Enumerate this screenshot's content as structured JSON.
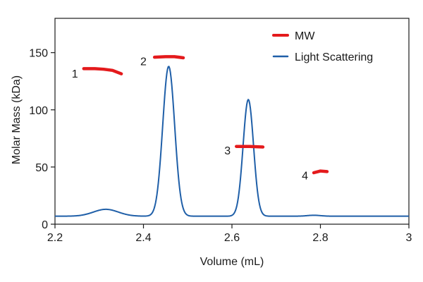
{
  "chart_data": {
    "type": "line",
    "title": "",
    "xlabel": "Volume (mL)",
    "ylabel": "Molar Mass (kDa)",
    "xlim": [
      2.2,
      3.0
    ],
    "ylim": [
      0,
      180
    ],
    "x_ticks": [
      {
        "value": 2.2,
        "label": "2.2"
      },
      {
        "value": 2.4,
        "label": "2.4"
      },
      {
        "value": 2.6,
        "label": "2.6"
      },
      {
        "value": 2.8,
        "label": "2.8"
      },
      {
        "value": 3.0,
        "label": "3"
      }
    ],
    "y_ticks": [
      {
        "value": 0,
        "label": "0"
      },
      {
        "value": 50,
        "label": "50"
      },
      {
        "value": 100,
        "label": "100"
      },
      {
        "value": 150,
        "label": "150"
      }
    ],
    "legend_position": "top-right",
    "series": [
      {
        "name": "MW",
        "color": "#e41a1c",
        "segments": [
          {
            "label": "1",
            "x": [
              2.265,
              2.29,
              2.31,
              2.33,
              2.35
            ],
            "y": [
              136,
              136,
              135.5,
              134.5,
              131.5
            ]
          },
          {
            "label": "2",
            "x": [
              2.425,
              2.45,
              2.47,
              2.49
            ],
            "y": [
              146,
              146.5,
              146.5,
              145.5
            ]
          },
          {
            "label": "3",
            "x": [
              2.61,
              2.64,
              2.67
            ],
            "y": [
              68,
              68,
              67.5
            ]
          },
          {
            "label": "4",
            "x": [
              2.785,
              2.8,
              2.815
            ],
            "y": [
              45,
              46.5,
              46
            ]
          }
        ]
      },
      {
        "name": "Light Scattering",
        "color": "#1f5fa8",
        "baseline": 7,
        "peaks": [
          {
            "center": 2.315,
            "height": 6,
            "width": 0.028
          },
          {
            "center": 2.457,
            "height": 131,
            "width": 0.0135
          },
          {
            "center": 2.637,
            "height": 102,
            "width": 0.0118
          },
          {
            "center": 2.785,
            "height": 0.8,
            "width": 0.015
          }
        ]
      }
    ],
    "peak_labels": [
      {
        "text": "1",
        "x": 2.245,
        "y": 133
      },
      {
        "text": "2",
        "x": 2.4,
        "y": 144
      },
      {
        "text": "3",
        "x": 2.59,
        "y": 66
      },
      {
        "text": "4",
        "x": 2.765,
        "y": 44
      }
    ]
  }
}
